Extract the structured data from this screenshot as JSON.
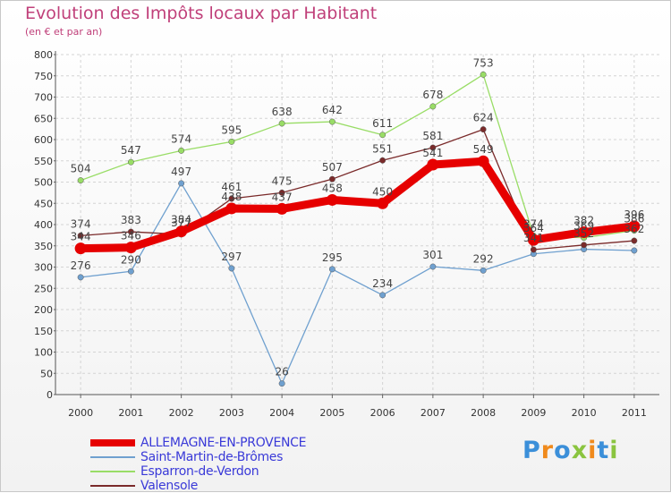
{
  "header": {
    "title": "Evolution des Impôts locaux par Habitant",
    "subtitle": "(en € et par an)"
  },
  "logo": {
    "text": "Proxiti",
    "letter_colors": [
      "#3b8fd9",
      "#f08a1c",
      "#3b8fd9",
      "#8ac43f",
      "#f08a1c",
      "#3b8fd9",
      "#8ac43f"
    ]
  },
  "chart_data": {
    "type": "line",
    "title": "Evolution des Impôts locaux par Habitant",
    "subtitle": "(en € et par an)",
    "x": [
      "2000",
      "2001",
      "2002",
      "2003",
      "2004",
      "2005",
      "2006",
      "2007",
      "2008",
      "2009",
      "2010",
      "2011"
    ],
    "ylim": [
      0,
      800
    ],
    "yticks": [
      0,
      50,
      100,
      150,
      200,
      250,
      300,
      350,
      400,
      450,
      500,
      550,
      600,
      650,
      700,
      750,
      800
    ],
    "grid": true,
    "legend": "bottom-left",
    "series": [
      {
        "name": "ALLEMAGNE-EN-PROVENCE",
        "color": "#e60000",
        "values": [
          344,
          346,
          384,
          438,
          437,
          458,
          450,
          541,
          549,
          364,
          382,
          396
        ],
        "labels": true
      },
      {
        "name": "Saint-Martin-de-Brômes",
        "color": "#6fa0cf",
        "values": [
          276,
          290,
          497,
          297,
          26,
          295,
          234,
          301,
          292,
          331,
          342,
          339
        ],
        "labels": [
          true,
          true,
          true,
          true,
          true,
          true,
          true,
          true,
          true,
          false,
          false,
          false
        ]
      },
      {
        "name": "Esparron-de-Verdon",
        "color": "#99dd66",
        "values": [
          504,
          547,
          574,
          595,
          638,
          642,
          611,
          678,
          753,
          374,
          369,
          386
        ],
        "labels": true
      },
      {
        "name": "Valensole",
        "color": "#7a2a2a",
        "values": [
          374,
          383,
          377,
          461,
          475,
          507,
          551,
          581,
          624,
          341,
          352,
          362
        ],
        "labels": true
      }
    ]
  }
}
